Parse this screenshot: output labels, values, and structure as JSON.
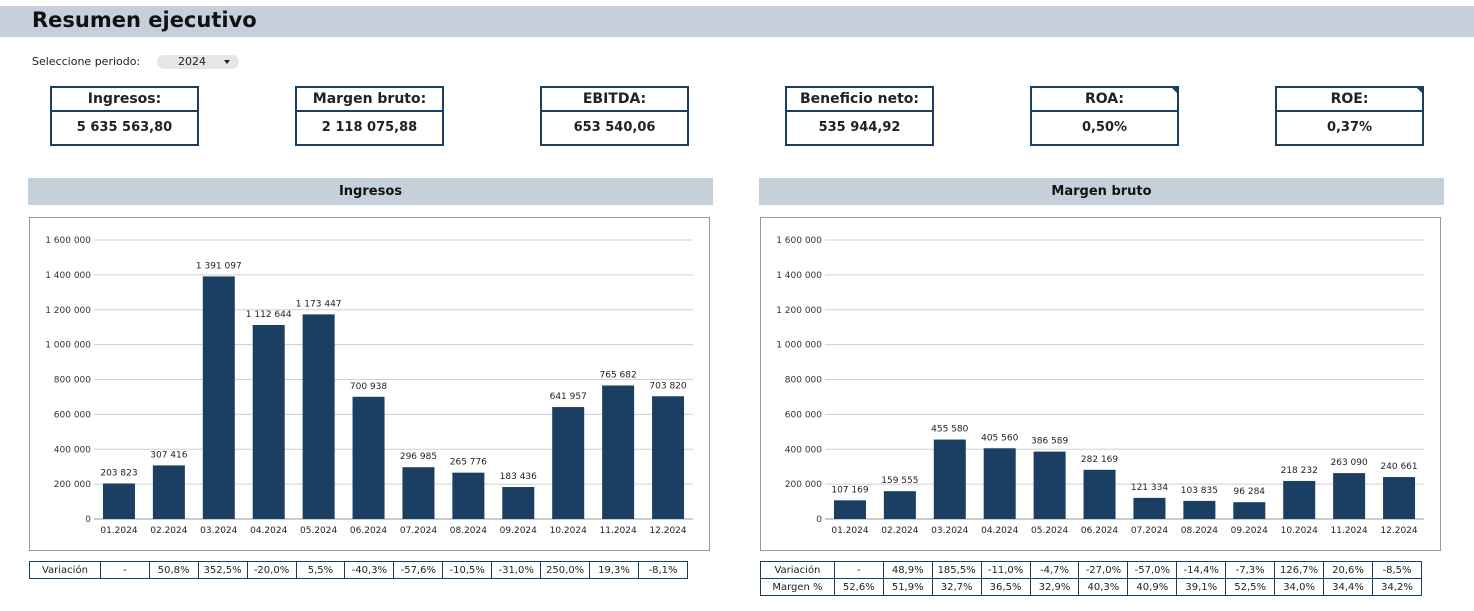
{
  "header": {
    "title": "Resumen ejecutivo"
  },
  "filter": {
    "label": "Seleccione periodo:",
    "value": "2024"
  },
  "kpis": [
    {
      "label": "Ingresos:",
      "value": "5 635 563,80"
    },
    {
      "label": "Margen bruto:",
      "value": "2 118 075,88"
    },
    {
      "label": "EBITDA:",
      "value": "653 540,06"
    },
    {
      "label": "Beneficio neto:",
      "value": "535 944,92"
    },
    {
      "label": "ROA:",
      "value": "0,50%"
    },
    {
      "label": "ROE:",
      "value": "0,37%"
    }
  ],
  "colors": {
    "bar": "#1b3e63",
    "header_bg": "#c5d0da",
    "grid": "#d0d0d0"
  },
  "chart_data": [
    {
      "type": "bar",
      "title": "Ingresos",
      "categories": [
        "01.2024",
        "02.2024",
        "03.2024",
        "04.2024",
        "05.2024",
        "06.2024",
        "07.2024",
        "08.2024",
        "09.2024",
        "10.2024",
        "11.2024",
        "12.2024"
      ],
      "values": [
        203823,
        307416,
        1391097,
        1112644,
        1173447,
        700938,
        296985,
        265776,
        183436,
        641957,
        765682,
        703820
      ],
      "data_labels": [
        "203 823",
        "307 416",
        "1 391 097",
        "1 112 644",
        "1 173 447",
        "700 938",
        "296 985",
        "265 776",
        "183 436",
        "641 957",
        "765 682",
        "703 820"
      ],
      "ylim": [
        0,
        1600000
      ],
      "yticks": [
        "0",
        "200 000",
        "400 000",
        "600 000",
        "800 000",
        "1 000 000",
        "1 200 000",
        "1 400 000",
        "1 600 000"
      ],
      "grid": true,
      "legend": "none"
    },
    {
      "type": "bar",
      "title": "Margen bruto",
      "categories": [
        "01.2024",
        "02.2024",
        "03.2024",
        "04.2024",
        "05.2024",
        "06.2024",
        "07.2024",
        "08.2024",
        "09.2024",
        "10.2024",
        "11.2024",
        "12.2024"
      ],
      "values": [
        107169,
        159555,
        455580,
        405560,
        386589,
        282169,
        121334,
        103835,
        96284,
        218232,
        263090,
        240661
      ],
      "data_labels": [
        "107 169",
        "159 555",
        "455 580",
        "405 560",
        "386 589",
        "282 169",
        "121 334",
        "103 835",
        "96 284",
        "218 232",
        "263 090",
        "240 661"
      ],
      "ylim": [
        0,
        1600000
      ],
      "yticks": [
        "0",
        "200 000",
        "400 000",
        "600 000",
        "800 000",
        "1 000 000",
        "1 200 000",
        "1 400 000",
        "1 600 000"
      ],
      "grid": true,
      "legend": "none"
    }
  ],
  "tables": {
    "ingresos": {
      "rows": [
        {
          "label": "Variación",
          "cells": [
            "-",
            "50,8%",
            "352,5%",
            "-20,0%",
            "5,5%",
            "-40,3%",
            "-57,6%",
            "-10,5%",
            "-31,0%",
            "250,0%",
            "19,3%",
            "-8,1%"
          ]
        }
      ]
    },
    "margen": {
      "rows": [
        {
          "label": "Variación",
          "cells": [
            "-",
            "48,9%",
            "185,5%",
            "-11,0%",
            "-4,7%",
            "-27,0%",
            "-57,0%",
            "-14,4%",
            "-7,3%",
            "126,7%",
            "20,6%",
            "-8,5%"
          ]
        },
        {
          "label": "Margen %",
          "cells": [
            "52,6%",
            "51,9%",
            "32,7%",
            "36,5%",
            "32,9%",
            "40,3%",
            "40,9%",
            "39,1%",
            "52,5%",
            "34,0%",
            "34,4%",
            "34,2%"
          ]
        }
      ]
    }
  }
}
